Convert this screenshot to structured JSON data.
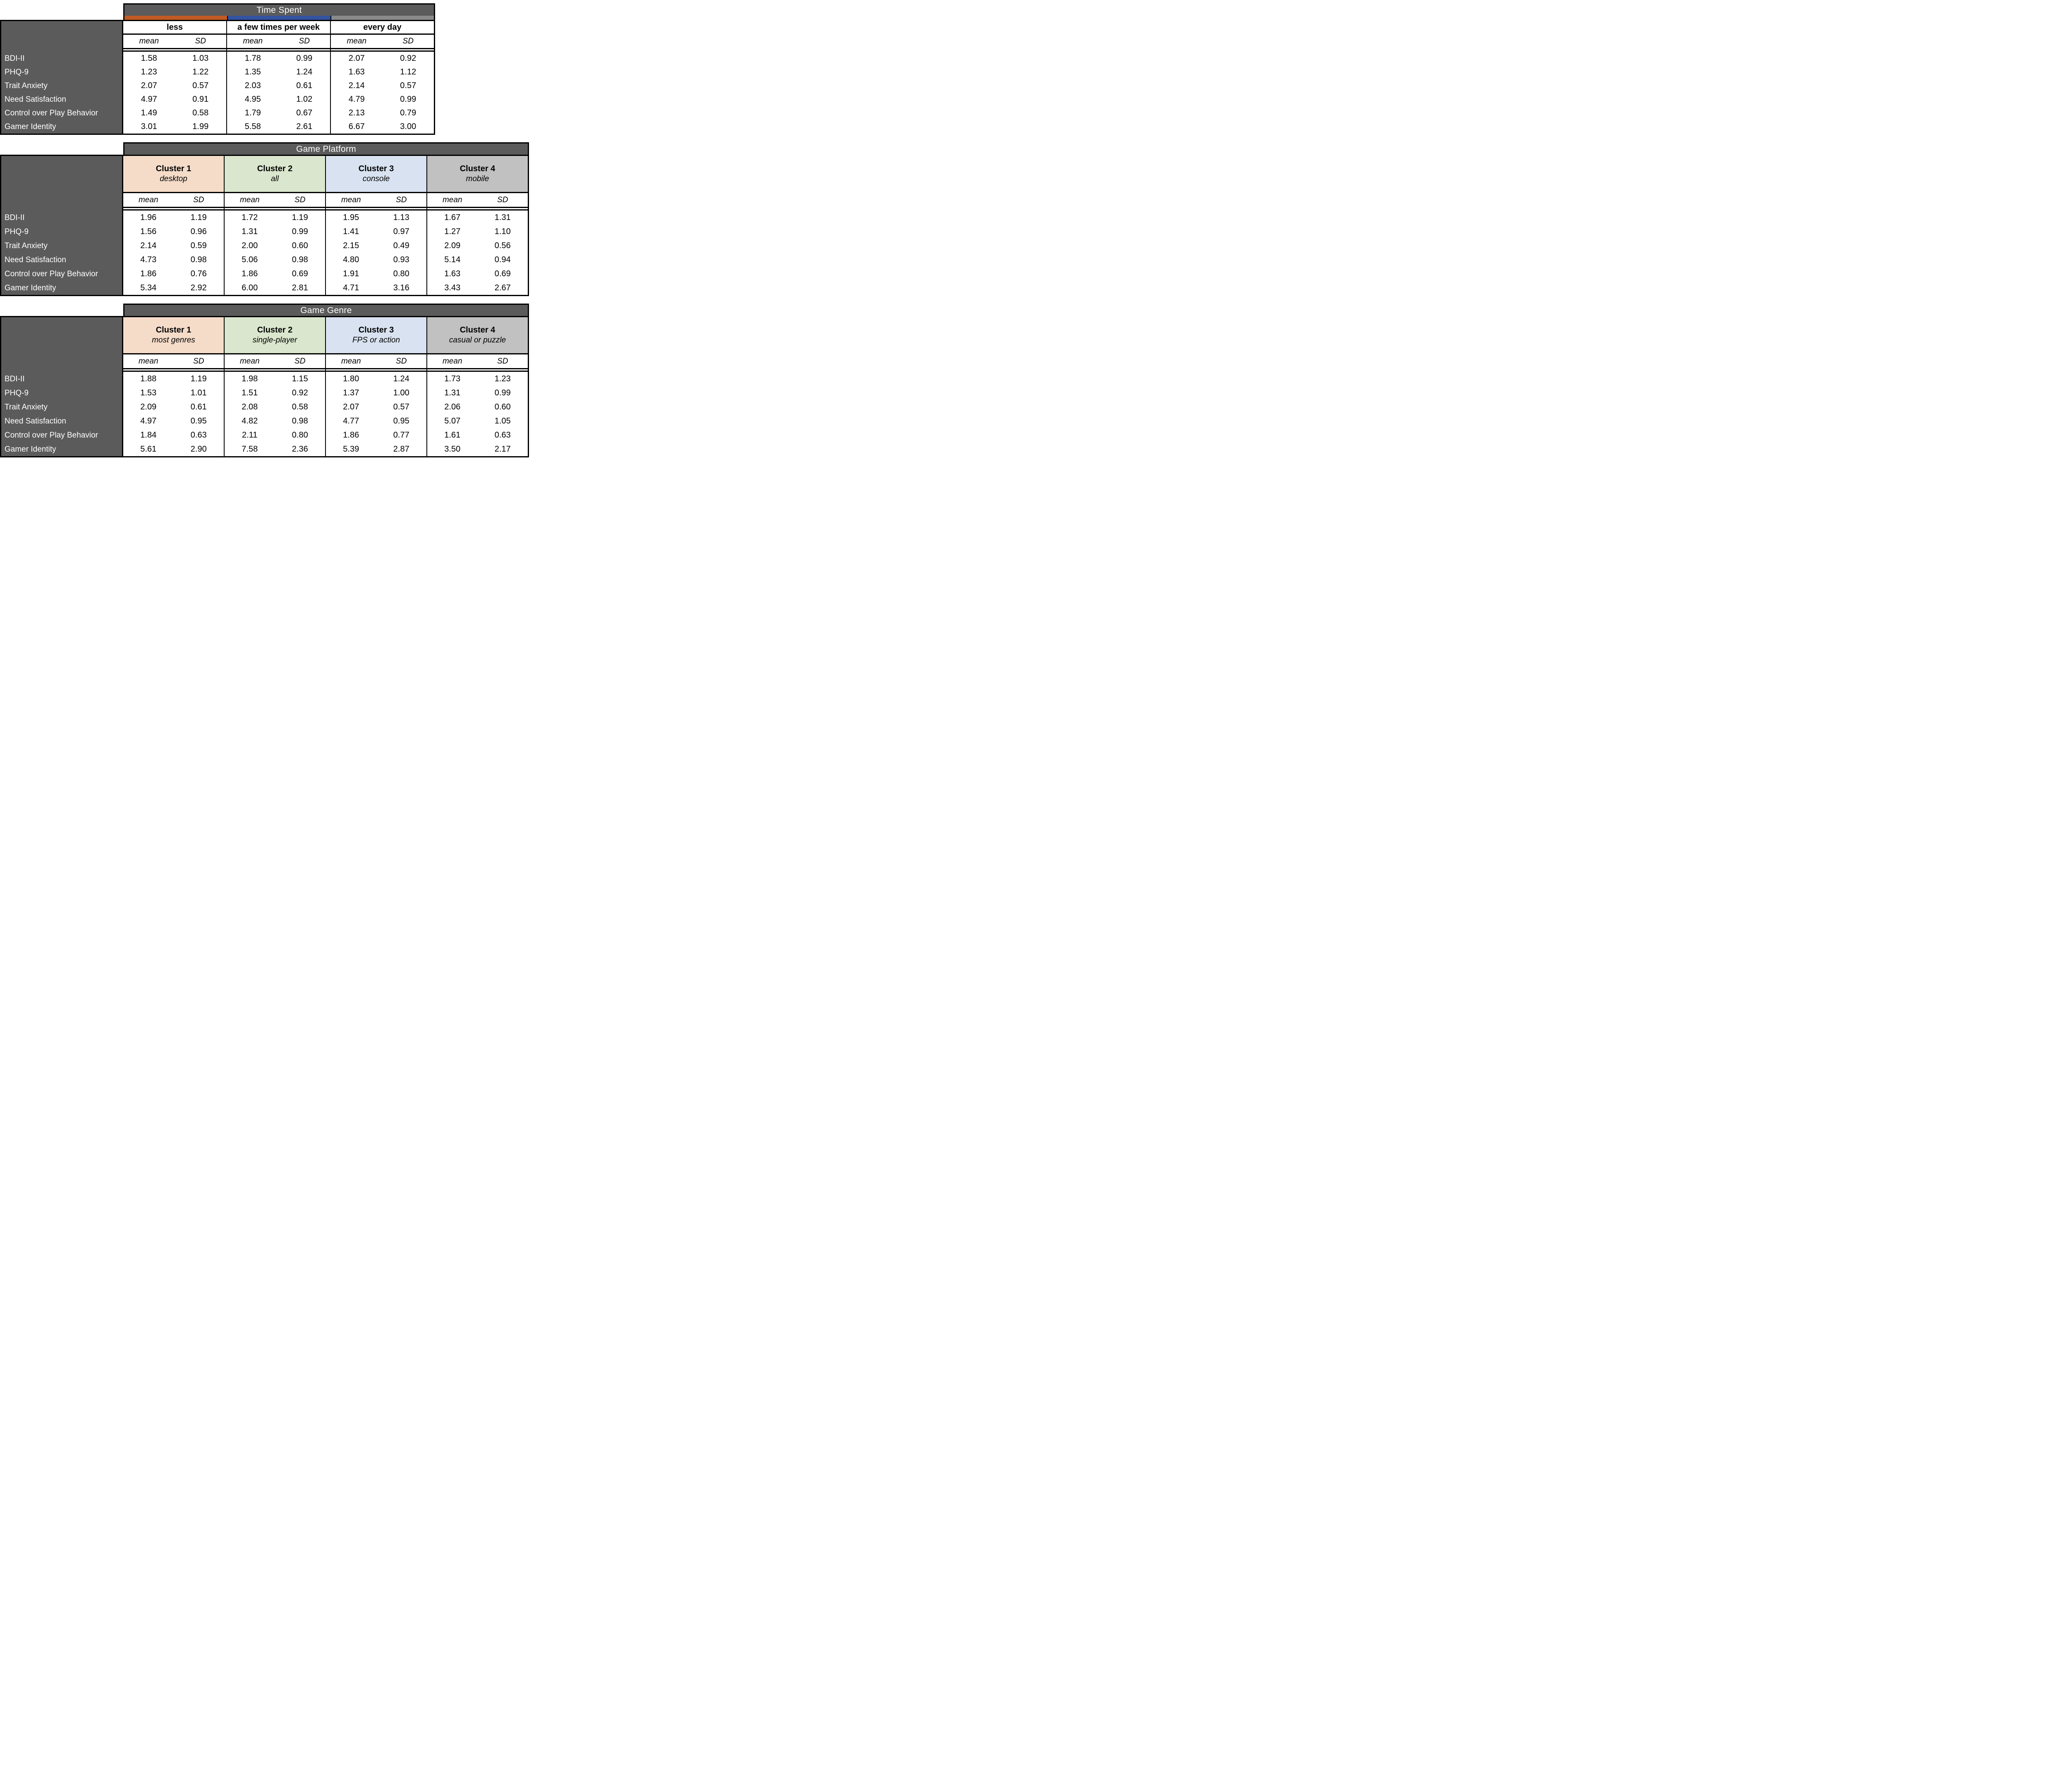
{
  "labels": {
    "mean": "mean",
    "sd": "SD"
  },
  "colors": {
    "band": "#5b5b5b",
    "band_text": "#ffffff",
    "label_panel": "#5b5b5b",
    "border": "#000000",
    "page_bg": "#ffffff"
  },
  "tables": [
    {
      "title": "Time Spent",
      "kind": "bars",
      "groups": [
        {
          "label": "less",
          "bar": "#c25a24"
        },
        {
          "label": "a few times per week",
          "bar": "#33539f"
        },
        {
          "label": "every day",
          "bar": "#8a8a8a"
        }
      ],
      "rows": [
        {
          "label": "BDI-II",
          "cells": [
            {
              "mean": "1.58",
              "sd": "1.03"
            },
            {
              "mean": "1.78",
              "sd": "0.99"
            },
            {
              "mean": "2.07",
              "sd": "0.92"
            }
          ]
        },
        {
          "label": "PHQ-9",
          "cells": [
            {
              "mean": "1.23",
              "sd": "1.22"
            },
            {
              "mean": "1.35",
              "sd": "1.24"
            },
            {
              "mean": "1.63",
              "sd": "1.12"
            }
          ]
        },
        {
          "label": "Trait Anxiety",
          "cells": [
            {
              "mean": "2.07",
              "sd": "0.57"
            },
            {
              "mean": "2.03",
              "sd": "0.61"
            },
            {
              "mean": "2.14",
              "sd": "0.57"
            }
          ]
        },
        {
          "label": "Need Satisfaction",
          "cells": [
            {
              "mean": "4.97",
              "sd": "0.91"
            },
            {
              "mean": "4.95",
              "sd": "1.02"
            },
            {
              "mean": "4.79",
              "sd": "0.99"
            }
          ]
        },
        {
          "label": "Control over Play Behavior",
          "cells": [
            {
              "mean": "1.49",
              "sd": "0.58"
            },
            {
              "mean": "1.79",
              "sd": "0.67"
            },
            {
              "mean": "2.13",
              "sd": "0.79"
            }
          ]
        },
        {
          "label": "Gamer Identity",
          "cells": [
            {
              "mean": "3.01",
              "sd": "1.99"
            },
            {
              "mean": "5.58",
              "sd": "2.61"
            },
            {
              "mean": "6.67",
              "sd": "3.00"
            }
          ]
        }
      ]
    },
    {
      "title": "Game Platform",
      "kind": "clusters",
      "groups": [
        {
          "label": "Cluster 1",
          "sublabel": "desktop",
          "fill": "#f5dcc9"
        },
        {
          "label": "Cluster 2",
          "sublabel": "all",
          "fill": "#dae6cd"
        },
        {
          "label": "Cluster 3",
          "sublabel": "console",
          "fill": "#d8e2f0"
        },
        {
          "label": "Cluster 4",
          "sublabel": "mobile",
          "fill": "#c1c1c1"
        }
      ],
      "rows": [
        {
          "label": "BDI-II",
          "cells": [
            {
              "mean": "1.96",
              "sd": "1.19"
            },
            {
              "mean": "1.72",
              "sd": "1.19"
            },
            {
              "mean": "1.95",
              "sd": "1.13"
            },
            {
              "mean": "1.67",
              "sd": "1.31"
            }
          ]
        },
        {
          "label": "PHQ-9",
          "cells": [
            {
              "mean": "1.56",
              "sd": "0.96"
            },
            {
              "mean": "1.31",
              "sd": "0.99"
            },
            {
              "mean": "1.41",
              "sd": "0.97"
            },
            {
              "mean": "1.27",
              "sd": "1.10"
            }
          ]
        },
        {
          "label": "Trait Anxiety",
          "cells": [
            {
              "mean": "2.14",
              "sd": "0.59"
            },
            {
              "mean": "2.00",
              "sd": "0.60"
            },
            {
              "mean": "2.15",
              "sd": "0.49"
            },
            {
              "mean": "2.09",
              "sd": "0.56"
            }
          ]
        },
        {
          "label": "Need Satisfaction",
          "cells": [
            {
              "mean": "4.73",
              "sd": "0.98"
            },
            {
              "mean": "5.06",
              "sd": "0.98"
            },
            {
              "mean": "4.80",
              "sd": "0.93"
            },
            {
              "mean": "5.14",
              "sd": "0.94"
            }
          ]
        },
        {
          "label": "Control over Play Behavior",
          "cells": [
            {
              "mean": "1.86",
              "sd": "0.76"
            },
            {
              "mean": "1.86",
              "sd": "0.69"
            },
            {
              "mean": "1.91",
              "sd": "0.80"
            },
            {
              "mean": "1.63",
              "sd": "0.69"
            }
          ]
        },
        {
          "label": "Gamer Identity",
          "cells": [
            {
              "mean": "5.34",
              "sd": "2.92"
            },
            {
              "mean": "6.00",
              "sd": "2.81"
            },
            {
              "mean": "4.71",
              "sd": "3.16"
            },
            {
              "mean": "3.43",
              "sd": "2.67"
            }
          ]
        }
      ]
    },
    {
      "title": "Game Genre",
      "kind": "clusters",
      "groups": [
        {
          "label": "Cluster 1",
          "sublabel": "most genres",
          "fill": "#f5dcc9"
        },
        {
          "label": "Cluster 2",
          "sublabel": "single-player",
          "fill": "#dae6cd"
        },
        {
          "label": "Cluster 3",
          "sublabel": "FPS or action",
          "fill": "#d8e2f0"
        },
        {
          "label": "Cluster 4",
          "sublabel": "casual or puzzle",
          "fill": "#c1c1c1"
        }
      ],
      "rows": [
        {
          "label": "BDI-II",
          "cells": [
            {
              "mean": "1.88",
              "sd": "1.19"
            },
            {
              "mean": "1.98",
              "sd": "1.15"
            },
            {
              "mean": "1.80",
              "sd": "1.24"
            },
            {
              "mean": "1.73",
              "sd": "1.23"
            }
          ]
        },
        {
          "label": "PHQ-9",
          "cells": [
            {
              "mean": "1.53",
              "sd": "1.01"
            },
            {
              "mean": "1.51",
              "sd": "0.92"
            },
            {
              "mean": "1.37",
              "sd": "1.00"
            },
            {
              "mean": "1.31",
              "sd": "0.99"
            }
          ]
        },
        {
          "label": "Trait Anxiety",
          "cells": [
            {
              "mean": "2.09",
              "sd": "0.61"
            },
            {
              "mean": "2.08",
              "sd": "0.58"
            },
            {
              "mean": "2.07",
              "sd": "0.57"
            },
            {
              "mean": "2.06",
              "sd": "0.60"
            }
          ]
        },
        {
          "label": "Need Satisfaction",
          "cells": [
            {
              "mean": "4.97",
              "sd": "0.95"
            },
            {
              "mean": "4.82",
              "sd": "0.98"
            },
            {
              "mean": "4.77",
              "sd": "0.95"
            },
            {
              "mean": "5.07",
              "sd": "1.05"
            }
          ]
        },
        {
          "label": "Control over Play Behavior",
          "cells": [
            {
              "mean": "1.84",
              "sd": "0.63"
            },
            {
              "mean": "2.11",
              "sd": "0.80"
            },
            {
              "mean": "1.86",
              "sd": "0.77"
            },
            {
              "mean": "1.61",
              "sd": "0.63"
            }
          ]
        },
        {
          "label": "Gamer Identity",
          "cells": [
            {
              "mean": "5.61",
              "sd": "2.90"
            },
            {
              "mean": "7.58",
              "sd": "2.36"
            },
            {
              "mean": "5.39",
              "sd": "2.87"
            },
            {
              "mean": "3.50",
              "sd": "2.17"
            }
          ]
        }
      ]
    }
  ]
}
